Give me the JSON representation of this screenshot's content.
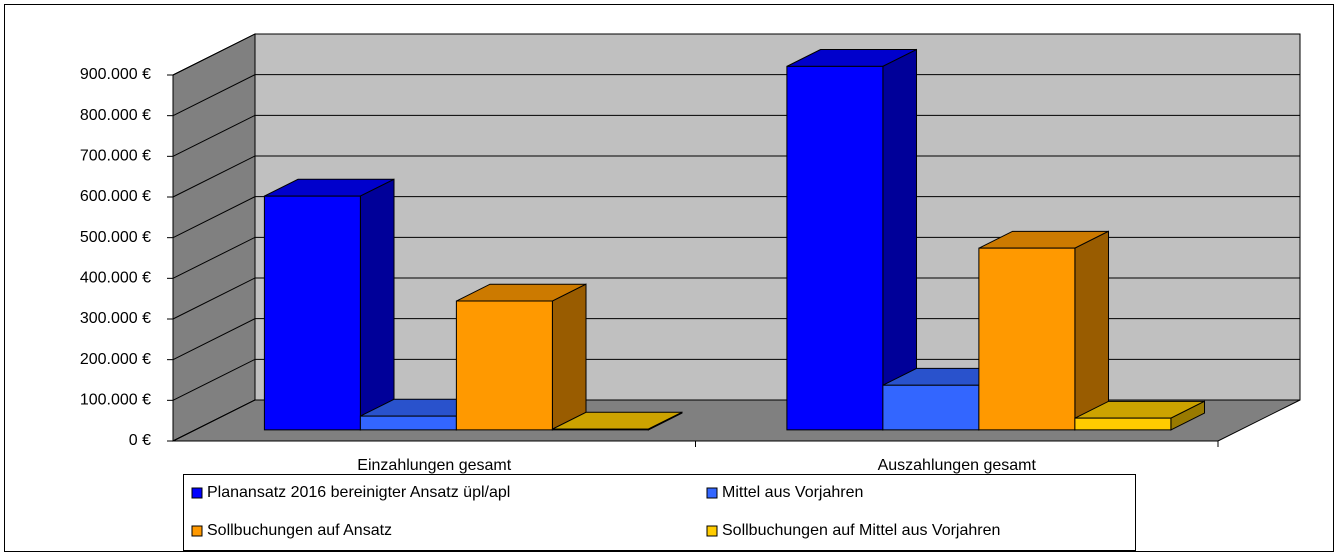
{
  "chart_data": {
    "type": "bar3d",
    "categories": [
      "Einzahlungen gesamt",
      "Auszahlungen gesamt"
    ],
    "series": [
      {
        "name": "Planansatz 2016 bereinigter Ansatz üpl/apl",
        "color": "#0000ff",
        "values": [
          575000,
          894000
        ]
      },
      {
        "name": "Mittel aus Vorjahren",
        "color": "#3366ff",
        "values": [
          34000,
          110000
        ]
      },
      {
        "name": "Sollbuchungen auf Ansatz",
        "color": "#ff9900",
        "values": [
          317000,
          447000
        ]
      },
      {
        "name": "Sollbuchungen auf Mittel aus Vorjahren",
        "color": "#ffcc00",
        "values": [
          2000,
          29000
        ]
      }
    ],
    "ylim": [
      0,
      900000
    ],
    "yticks": [
      {
        "value": 0,
        "label": "0 €"
      },
      {
        "value": 100000,
        "label": "100.000 €"
      },
      {
        "value": 200000,
        "label": "200.000 €"
      },
      {
        "value": 300000,
        "label": "300.000 €"
      },
      {
        "value": 400000,
        "label": "400.000 €"
      },
      {
        "value": 500000,
        "label": "500.000 €"
      },
      {
        "value": 600000,
        "label": "600.000 €"
      },
      {
        "value": 700000,
        "label": "700.000 €"
      },
      {
        "value": 800000,
        "label": "800.000 €"
      },
      {
        "value": 900000,
        "label": "900.000 €"
      }
    ],
    "grid": true
  }
}
